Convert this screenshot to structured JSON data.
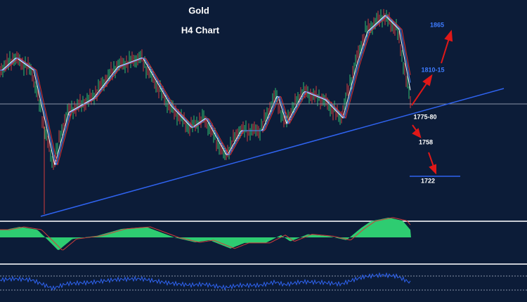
{
  "chart_data": {
    "type": "annotated-price-chart",
    "title": "Gold",
    "subtitle": "H4 Chart",
    "annotations": [
      "1865",
      "1810-15",
      "1775-80",
      "1758",
      "1722"
    ]
  }
}
